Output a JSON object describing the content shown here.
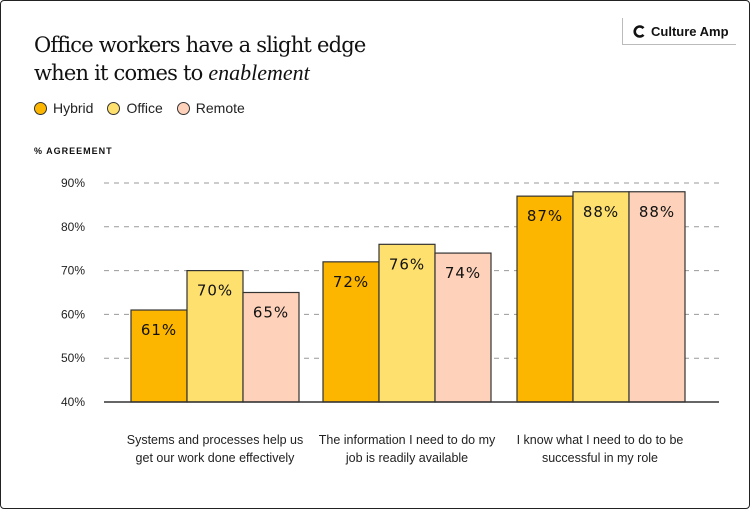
{
  "header": {
    "title_line1": "Office workers have a slight edge",
    "title_line2": "when it comes to",
    "title_accent": "enablement",
    "logo_text": "Culture Amp"
  },
  "colors": {
    "Hybrid": "#FDB600",
    "Office": "#FEE06E",
    "Remote": "#FED2BA"
  },
  "chart_data": {
    "type": "bar",
    "title": "Office workers have a slight edge when it comes to enablement",
    "ylabel": "% AGREEMENT",
    "xlabel": "",
    "ylim": [
      40,
      90
    ],
    "yticks": [
      "40%",
      "50%",
      "60%",
      "70%",
      "80%",
      "90%"
    ],
    "grid": true,
    "legend_position": "top-left",
    "categories": [
      "Systems and processes help us get our work done effectively",
      "The information I need to do my job is readily available",
      "I know what I need to do to be successful in my role"
    ],
    "series": [
      {
        "name": "Hybrid",
        "values": [
          61,
          72,
          87
        ],
        "labels": [
          "61%",
          "72%",
          "87%"
        ]
      },
      {
        "name": "Office",
        "values": [
          70,
          76,
          88
        ],
        "labels": [
          "70%",
          "76%",
          "88%"
        ]
      },
      {
        "name": "Remote",
        "values": [
          65,
          74,
          88
        ],
        "labels": [
          "65%",
          "74%",
          "88%"
        ]
      }
    ]
  }
}
